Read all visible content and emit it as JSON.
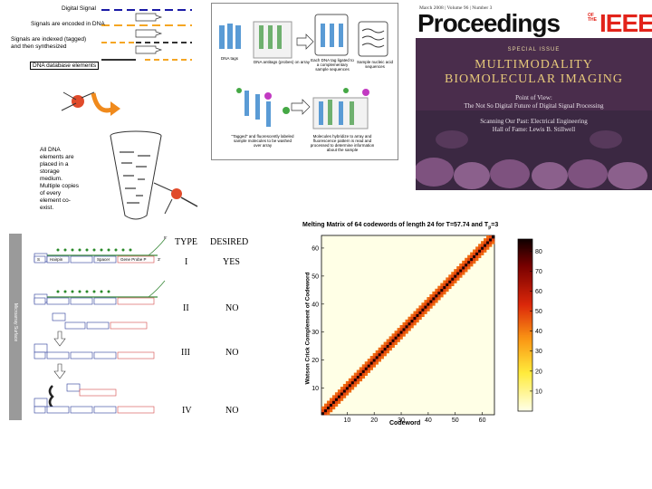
{
  "legend": {
    "digital_signal": "Digital Signal",
    "encoded_in_dna": "Signals are encoded in DNA",
    "indexed_line1": "Signals are indexed (tagged)",
    "indexed_line2": "and then synthesized",
    "db_elements": "DNA database elements"
  },
  "storage_note": [
    "All DNA",
    "elements are",
    "placed in a",
    "storage",
    "medium.",
    "Multiple copies",
    "of every",
    "element co-",
    "exist."
  ],
  "figure_captions": {
    "dna_tags": "DNA tags",
    "dna_antitags": "DNA antitags (probes) on array",
    "ligated": "Each DNA tag ligated to a complementary sample sequences",
    "sample_nucleic": "Sample nucleic acid sequences",
    "tagged_washed": "\"Tagged\" and fluorescently labeled sample molecules to be washed over array",
    "hybridize": "Molecules hybridize to array and fluorescence pattern is read and processed to determine information about the sample"
  },
  "journal": {
    "meta": "March 2008 | Volume 96 | Number 3",
    "name": "Proceedings",
    "of_the": "OF THE",
    "ieee": "IEEE",
    "special_issue": "SPECIAL ISSUE",
    "title_line1": "MULTIMODALITY",
    "title_line2": "BIOMOLECULAR IMAGING",
    "pov_line1": "Point of View:",
    "pov_line2": "The Not So Digital Future of Digital Signal Processing",
    "past_line1": "Scanning Our Past: Electrical Engineering",
    "past_line2": "Hall of Fame: Lewis B. Stillwell"
  },
  "probe_table": {
    "header_type": "TYPE",
    "header_desired": "DESIRED",
    "surface_label": "Microarray Surface",
    "rows": [
      {
        "type": "I",
        "desired": "YES"
      },
      {
        "type": "II",
        "desired": "NO"
      },
      {
        "type": "III",
        "desired": "NO"
      },
      {
        "type": "IV",
        "desired": "NO"
      }
    ],
    "block_labels": {
      "hairpin": "Hairpin",
      "spacer": "Spacer",
      "gene_probe": "Gene Probe P",
      "si": "S",
      "five": "5'",
      "three": "3'"
    }
  },
  "colors": {
    "orange_dash": "#f5a623",
    "blue_dash": "#1a1aa6",
    "arrow_orange": "#f08a1c",
    "journal_red": "#e2231a",
    "heat_dark": "#3a0000"
  },
  "chart_data": {
    "type": "heatmap",
    "title": "Melting Matrix of 64 codewords of length 24 for T=57.74 and T",
    "title_sub": "p",
    "title_tail": "=3",
    "xlabel": "Codeword",
    "ylabel": "Watson Crick Complement of Codeword",
    "xlim": [
      1,
      64
    ],
    "ylim": [
      1,
      64
    ],
    "x_ticks": [
      10,
      20,
      30,
      40,
      50,
      60
    ],
    "y_ticks": [
      10,
      20,
      30,
      40,
      50,
      60
    ],
    "colorbar_ticks": [
      10,
      20,
      30,
      40,
      50,
      60,
      70,
      80
    ],
    "colorbar_range": [
      0,
      86
    ],
    "diagonal_value": 85,
    "near_diagonal_value": 55,
    "band_halfwidth": 2
  }
}
